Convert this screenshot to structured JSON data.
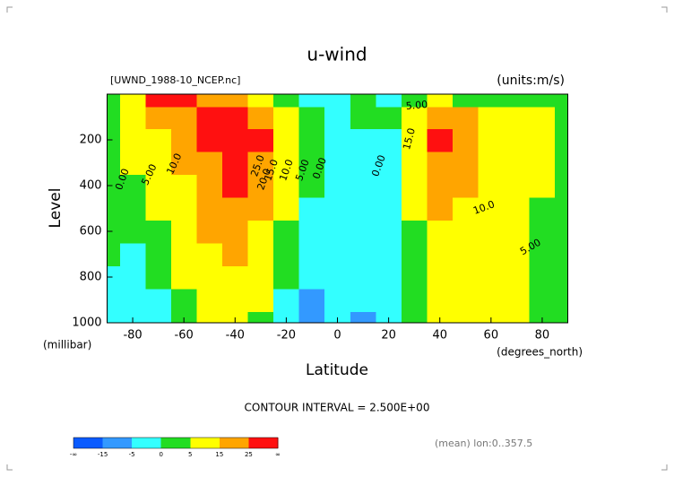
{
  "chart_data": {
    "type": "contour",
    "title": "u-wind",
    "source_label": "[UWND_1988-10_NCEP.nc]",
    "units_label": "(units:m/s)",
    "x_label": "Latitude",
    "x_units": "(degrees_north)",
    "y_label": "Level",
    "y_units": "(millibar)",
    "footer": "CONTOUR INTERVAL = 2.500E+00",
    "region_label": "(mean) lon:0..357.5",
    "xlim": [
      -90,
      90
    ],
    "xticks": [
      -80,
      -60,
      -40,
      -20,
      0,
      20,
      40,
      60,
      80
    ],
    "ylim": [
      1000,
      0
    ],
    "yticks": [
      200,
      400,
      600,
      800,
      1000
    ],
    "x": [
      -90,
      -80,
      -70,
      -60,
      -50,
      -40,
      -30,
      -20,
      -10,
      0,
      10,
      20,
      30,
      40,
      50,
      60,
      70,
      80,
      90
    ],
    "levels": [
      1000,
      900,
      800,
      700,
      600,
      500,
      400,
      300,
      200,
      100,
      10
    ],
    "z": [
      [
        -3,
        -2,
        -1,
        0,
        1,
        2,
        3,
        4,
        4,
        3,
        2
      ],
      [
        -4,
        -3,
        -2,
        -1,
        0,
        2,
        4,
        5,
        6,
        6,
        5
      ],
      [
        -2,
        -1,
        0,
        2,
        4,
        6,
        8,
        10,
        13,
        18,
        28
      ],
      [
        2,
        4,
        6,
        8,
        10,
        12,
        14,
        17,
        20,
        24,
        30
      ],
      [
        5,
        8,
        10,
        13,
        15,
        18,
        21,
        24,
        27,
        28,
        22
      ],
      [
        7,
        10,
        13,
        16,
        19,
        23,
        27,
        30,
        32,
        28,
        18
      ],
      [
        3,
        6,
        8,
        10,
        13,
        16,
        19,
        23,
        27,
        24,
        12
      ],
      [
        -2,
        -1,
        0,
        2,
        4,
        6,
        8,
        11,
        14,
        12,
        2
      ],
      [
        -7,
        -6,
        -4,
        -3,
        -2,
        -1,
        0,
        1,
        1,
        2,
        -4
      ],
      [
        -4,
        -5,
        -5,
        -4,
        -3,
        -2,
        -2,
        -3,
        -2,
        -1,
        -3
      ],
      [
        -6,
        -4,
        -3,
        -3,
        -2,
        -2,
        -2,
        -3,
        -3,
        0,
        1
      ],
      [
        -4,
        -3,
        -2,
        -2,
        -1,
        -1,
        -1,
        -1,
        -2,
        1,
        -3
      ],
      [
        0,
        1,
        2,
        3,
        4,
        6,
        8,
        11,
        13,
        9,
        0
      ],
      [
        6,
        8,
        10,
        12,
        14,
        16,
        19,
        22,
        26,
        22,
        6
      ],
      [
        7,
        8,
        9,
        10,
        11,
        13,
        15,
        17,
        19,
        16,
        4
      ],
      [
        6,
        7,
        7,
        8,
        8,
        9,
        10,
        11,
        12,
        11,
        4
      ],
      [
        5,
        5,
        5,
        5,
        6,
        6,
        6,
        7,
        8,
        9,
        4
      ],
      [
        2,
        2,
        3,
        3,
        4,
        4,
        5,
        5,
        6,
        7,
        3
      ],
      [
        0,
        0,
        1,
        1,
        2,
        2,
        3,
        3,
        3,
        4,
        2
      ]
    ],
    "colorbar": {
      "levels": [
        -15,
        -5,
        0,
        5,
        15,
        25
      ],
      "low_label": "-∞",
      "high_label": "∞",
      "colors": [
        "#0a5bff",
        "#3399ff",
        "#33ffff",
        "#22dd22",
        "#ffff00",
        "#ffa500",
        "#ff1010"
      ]
    },
    "contour_labels": [
      {
        "text": "25.0",
        "x": -31,
        "y": 314
      },
      {
        "text": "20.0",
        "x": -28.5,
        "y": 373
      },
      {
        "text": "15.0",
        "x": -25.7,
        "y": 333
      },
      {
        "text": "10.0",
        "x": -19.8,
        "y": 333
      },
      {
        "text": "5.00",
        "x": -13.5,
        "y": 333
      },
      {
        "text": "0.00",
        "x": -6.8,
        "y": 325
      },
      {
        "text": "0.00",
        "x": 16.3,
        "y": 314
      },
      {
        "text": "15.0",
        "x": 28.2,
        "y": 196
      },
      {
        "text": "5.00",
        "x": 31,
        "y": 51
      },
      {
        "text": "10.0",
        "x": 57.3,
        "y": 498
      },
      {
        "text": "5.00",
        "x": 75.5,
        "y": 670
      },
      {
        "text": "0.00",
        "x": -83.9,
        "y": 373
      },
      {
        "text": "5.00",
        "x": -73.4,
        "y": 353
      },
      {
        "text": "10.0",
        "x": -63.6,
        "y": 306
      }
    ]
  }
}
